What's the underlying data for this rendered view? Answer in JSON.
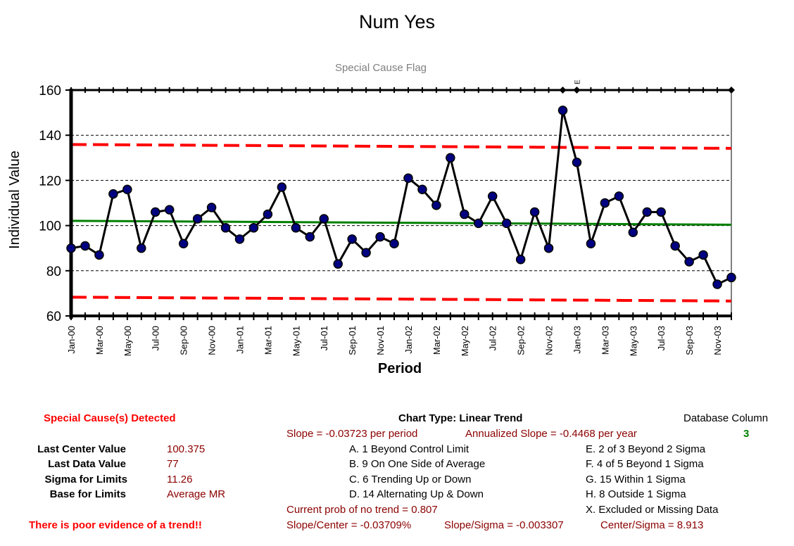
{
  "chart_data": {
    "type": "line",
    "title": "Num Yes",
    "subtitle": "Special Cause Flag",
    "xlabel": "Period",
    "ylabel": "Individual Value",
    "ylim": [
      60,
      160
    ],
    "yticks": [
      60,
      80,
      100,
      120,
      140,
      160
    ],
    "grid": true,
    "periods": [
      "Jan-00",
      "Feb-00",
      "Mar-00",
      "Apr-00",
      "May-00",
      "Jun-00",
      "Jul-00",
      "Aug-00",
      "Sep-00",
      "Oct-00",
      "Nov-00",
      "Dec-00",
      "Jan-01",
      "Feb-01",
      "Mar-01",
      "Apr-01",
      "May-01",
      "Jun-01",
      "Jul-01",
      "Aug-01",
      "Sep-01",
      "Oct-01",
      "Nov-01",
      "Dec-01",
      "Jan-02",
      "Feb-02",
      "Mar-02",
      "Apr-02",
      "May-02",
      "Jun-02",
      "Jul-02",
      "Aug-02",
      "Sep-02",
      "Oct-02",
      "Nov-02",
      "Dec-02",
      "Jan-03",
      "Feb-03",
      "Mar-03",
      "Apr-03",
      "May-03",
      "Jun-03",
      "Jul-03",
      "Aug-03",
      "Sep-03",
      "Oct-03",
      "Nov-03",
      "Dec-03"
    ],
    "tick_labels": [
      "Jan-00",
      "Mar-00",
      "May-00",
      "Jul-00",
      "Sep-00",
      "Nov-00",
      "Jan-01",
      "Mar-01",
      "May-01",
      "Jul-01",
      "Sep-01",
      "Nov-01",
      "Jan-02",
      "Mar-02",
      "May-02",
      "Jul-02",
      "Sep-02",
      "Nov-02",
      "Jan-03",
      "Mar-03",
      "May-03",
      "Jul-03",
      "Sep-03",
      "Nov-03"
    ],
    "values": [
      90,
      91,
      87,
      114,
      116,
      90,
      106,
      107,
      92,
      103,
      108,
      99,
      94,
      99,
      105,
      117,
      99,
      95,
      103,
      83,
      94,
      88,
      95,
      92,
      121,
      116,
      109,
      130,
      105,
      101,
      113,
      101,
      85,
      106,
      90,
      151,
      128,
      92,
      110,
      113,
      97,
      106,
      106,
      91,
      84,
      87,
      74,
      77
    ],
    "center_line": {
      "start": 102.1,
      "end": 100.375
    },
    "ucl": {
      "start": 135.9,
      "end": 134.2
    },
    "lcl": {
      "start": 68.3,
      "end": 66.6
    },
    "flag_markers": [
      35,
      36,
      47
    ],
    "flag_label": "E",
    "flag_label_index": 36,
    "colors": {
      "data": "#000080",
      "line": "#000000",
      "center": "#008000",
      "limits": "#ff0000",
      "grid": "#000000"
    }
  },
  "stats": {
    "special_cause": "Special Cause(s) Detected",
    "last_center_label": "Last Center Value",
    "last_center_value": "100.375",
    "last_data_label": "Last Data Value",
    "last_data_value": "77",
    "sigma_label": "Sigma for Limits",
    "sigma_value": "11.26",
    "base_label": "Base for Limits",
    "base_value": "Average MR",
    "evidence": "There is poor evidence of a trend!!"
  },
  "info": {
    "chart_type": "Chart Type:   Linear Trend",
    "slope": "Slope = -0.03723 per period",
    "annualized": "Annualized Slope = -0.4468 per year",
    "db_label": "Database Column",
    "db_value": "3",
    "rules": [
      "A.  1 Beyond Control Limit",
      "B.  9 On One Side of Average",
      "C.  6 Trending Up or Down",
      "D.  14 Alternating  Up & Down"
    ],
    "rules_right": [
      "E.   2 of 3 Beyond 2 Sigma",
      "F.   4 of 5 Beyond 1 Sigma",
      "G.   15 Within 1 Sigma",
      "H.   8 Outside 1 Sigma",
      "X.   Excluded or Missing Data"
    ],
    "prob": "Current prob of no trend = 0.807",
    "slope_center": "Slope/Center = -0.03709%",
    "slope_sigma": "Slope/Sigma = -0.003307",
    "center_sigma": "Center/Sigma = 8.913"
  }
}
